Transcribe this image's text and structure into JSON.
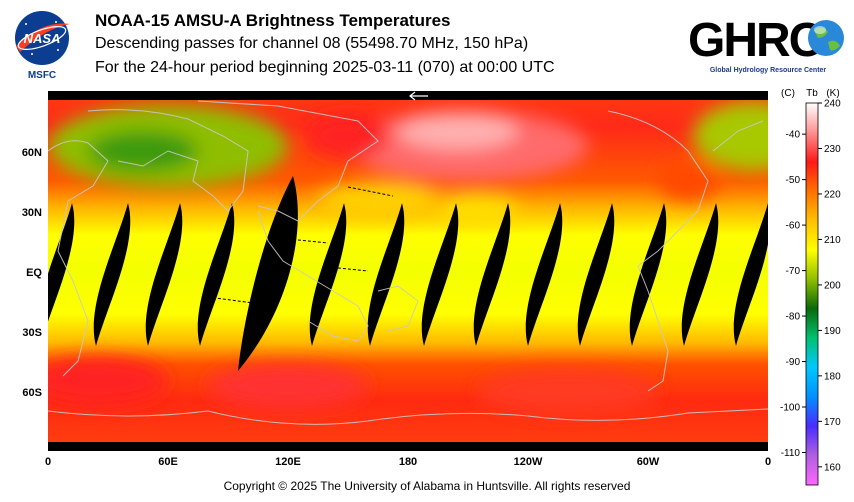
{
  "header": {
    "title": "NOAA-15 AMSU-A Brightness Temperatures",
    "line2": "Descending passes for channel 08 (55498.70 MHz, 150 hPa)",
    "line3": "For the 24-hour period beginning 2025-03-11 (070) at 00:00 UTC"
  },
  "nasa_logo": {
    "text": "NASA",
    "caption": "MSFC",
    "icon": "nasa-meatball-icon"
  },
  "ghrc_logo": {
    "text": "GHRC",
    "caption": "Global Hydrology Resource Center",
    "icon": "globe-icon"
  },
  "map": {
    "lat_labels": [
      "60N",
      "30N",
      "EQ",
      "30S",
      "60S"
    ],
    "lon_labels": [
      "0",
      "60E",
      "120E",
      "180",
      "120W",
      "60W",
      "0"
    ],
    "lat_values": [
      60,
      30,
      0,
      -30,
      -60
    ],
    "lon_values": [
      0,
      60,
      120,
      180,
      240,
      300,
      360
    ]
  },
  "colorbar": {
    "header_c": "(C)",
    "header_tb": "Tb",
    "header_k": "(K)",
    "celsius_ticks": [
      "-40",
      "-50",
      "-60",
      "-70",
      "-80",
      "-90",
      "-100",
      "-110"
    ],
    "kelvin_ticks": [
      "240",
      "230",
      "220",
      "210",
      "200",
      "190",
      "180",
      "170",
      "160"
    ],
    "celsius_values": [
      -40,
      -50,
      -60,
      -70,
      -80,
      -90,
      -100,
      -110
    ],
    "kelvin_values": [
      240,
      230,
      220,
      210,
      200,
      190,
      180,
      170,
      160
    ],
    "range_k": [
      156,
      240
    ],
    "colors": [
      "#ff66ff",
      "#b05fe0",
      "#4a2cff",
      "#0090ff",
      "#00c8ff",
      "#00c070",
      "#0a6a0a",
      "#8fbe00",
      "#ffff00",
      "#ffc000",
      "#ff7000",
      "#ff1818",
      "#ff9090",
      "#ffffff"
    ]
  },
  "footer": {
    "copyright": "Copyright © 2025 The University of Alabama in Huntsville.  All rights reserved"
  }
}
